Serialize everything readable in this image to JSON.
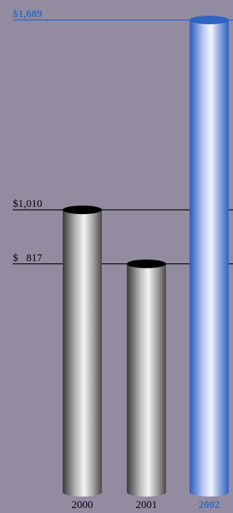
{
  "chart_data": {
    "type": "bar",
    "categories": [
      "2000",
      "2001",
      "2002"
    ],
    "values": [
      1010,
      817,
      1689
    ],
    "value_labels": [
      "$1,010",
      "$   817",
      "$1,689"
    ],
    "highlight_index": 2,
    "ylim": [
      0,
      1689
    ],
    "grid": false,
    "colors": {
      "background": "#938ca1",
      "bar_gray_dark": "#3c3c3c",
      "bar_gray_light": "#f2f2f2",
      "bar_blue_dark": "#2f63c0",
      "bar_blue_light": "#f2f5ff",
      "highlight_text": "#2f6bc2",
      "line_dark": "#000000",
      "line_highlight": "#2f6bc2"
    }
  }
}
